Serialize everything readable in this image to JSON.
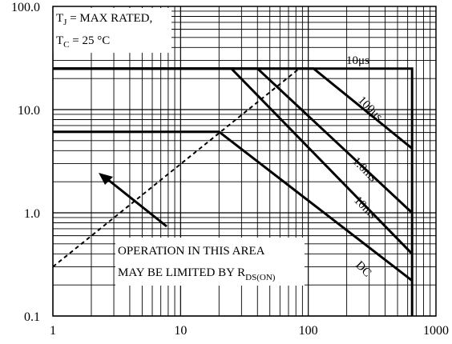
{
  "chart_data": {
    "type": "line",
    "title": "",
    "xlabel": "",
    "ylabel": "",
    "x_scale": "log",
    "y_scale": "log",
    "xlim": [
      1,
      1000
    ],
    "ylim": [
      0.1,
      100
    ],
    "grid": true,
    "x_ticks": [
      {
        "value": 1,
        "label": "1"
      },
      {
        "value": 10,
        "label": "10"
      },
      {
        "value": 100,
        "label": "100"
      },
      {
        "value": 1000,
        "label": "1000"
      }
    ],
    "y_ticks": [
      {
        "value": 0.1,
        "label": "0.1"
      },
      {
        "value": 1,
        "label": "1.0"
      },
      {
        "value": 10,
        "label": "10.0"
      },
      {
        "value": 100,
        "label": "100.0"
      }
    ],
    "conditions": {
      "line1": "T",
      "line1_sub": "J",
      "line1_rest": " = MAX RATED,",
      "line2": "T",
      "line2_sub": "C",
      "line2_rest": " = 25 °C"
    },
    "rds_annotation": {
      "line1": "OPERATION IN THIS AREA",
      "line2": "MAY BE LIMITED BY R",
      "subscript": "DS(ON)"
    },
    "series": [
      {
        "name": "10μs",
        "x": [
          1,
          650,
          650
        ],
        "y": [
          25,
          25,
          0.1
        ]
      },
      {
        "name": "100μs",
        "x": [
          1,
          110,
          650
        ],
        "y": [
          25,
          25,
          4.2
        ]
      },
      {
        "name": "1.0ms",
        "x": [
          1,
          40,
          650
        ],
        "y": [
          25,
          25,
          1.0
        ]
      },
      {
        "name": "10ms",
        "x": [
          1,
          25,
          650
        ],
        "y": [
          25,
          25,
          0.4
        ]
      },
      {
        "name": "DC",
        "x": [
          1,
          20,
          650
        ],
        "y": [
          6.1,
          6.1,
          0.22
        ]
      },
      {
        "name": "RDS(ON) limit",
        "style": "dashed",
        "x": [
          1,
          85
        ],
        "y": [
          0.3,
          25
        ]
      }
    ]
  }
}
